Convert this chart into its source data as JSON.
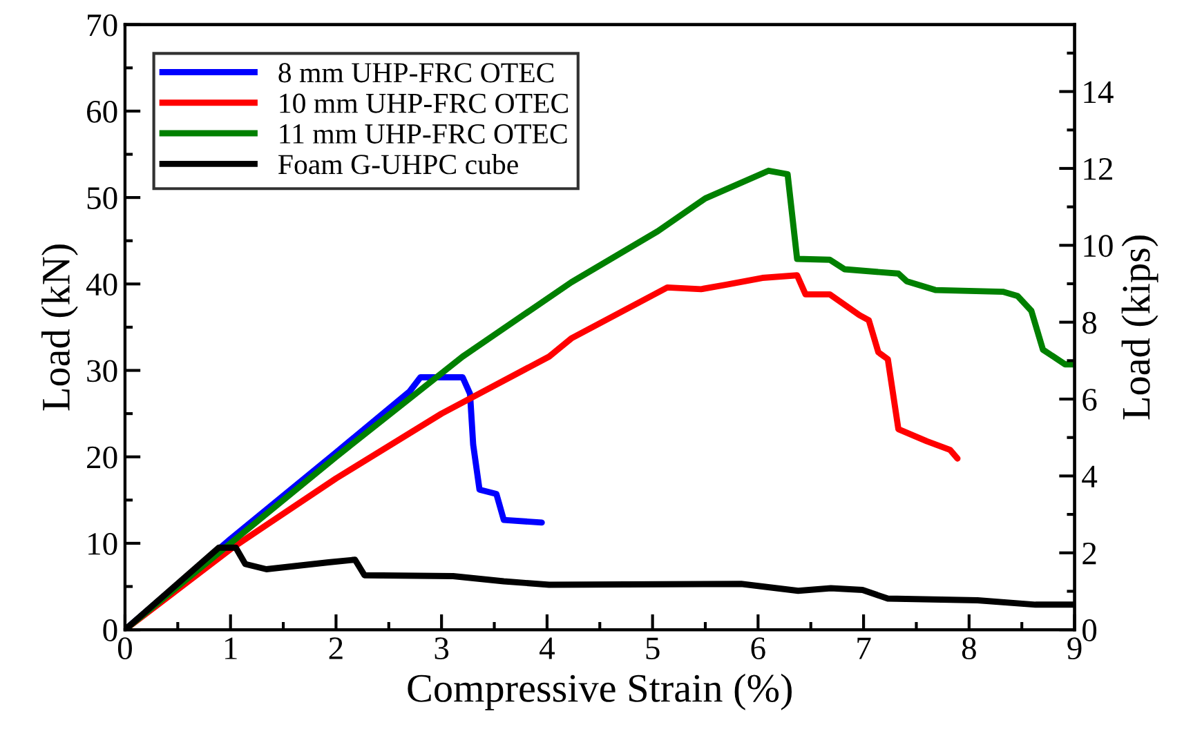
{
  "chart_data": {
    "type": "line",
    "xlabel": "Compressive Strain (%)",
    "ylabel": "Load (kN)",
    "y2label": "Load (kips)",
    "xlim": [
      0,
      9
    ],
    "ylim": [
      0,
      70
    ],
    "y2lim": [
      0,
      15.74
    ],
    "xticks": [
      0,
      {
        "value": 0.5,
        "label": null
      },
      1,
      {
        "value": 1.5,
        "label": null
      },
      2,
      {
        "value": 2.5,
        "label": null
      },
      3,
      {
        "value": 3.5,
        "label": null
      },
      4,
      {
        "value": 4.5,
        "label": null
      },
      5,
      {
        "value": 5.5,
        "label": null
      },
      6,
      {
        "value": 6.5,
        "label": null
      },
      7,
      {
        "value": 7.5,
        "label": null
      },
      8,
      {
        "value": 8.5,
        "label": null
      },
      9
    ],
    "yticks": [
      0,
      {
        "value": 5,
        "label": null
      },
      10,
      {
        "value": 15,
        "label": null
      },
      20,
      {
        "value": 25,
        "label": null
      },
      30,
      {
        "value": 35,
        "label": null
      },
      40,
      {
        "value": 45,
        "label": null
      },
      50,
      {
        "value": 55,
        "label": null
      },
      60,
      {
        "value": 65,
        "label": null
      },
      70
    ],
    "y2ticks": [
      0,
      {
        "value": 1,
        "label": null
      },
      2,
      {
        "value": 3,
        "label": null
      },
      4,
      {
        "value": 5,
        "label": null
      },
      6,
      {
        "value": 7,
        "label": null
      },
      8,
      {
        "value": 9,
        "label": null
      },
      10,
      {
        "value": 11,
        "label": null
      },
      12,
      {
        "value": 13,
        "label": null
      },
      14,
      {
        "value": 15,
        "label": null
      }
    ],
    "grid": false,
    "legend": "top left",
    "marker": "none",
    "line_style": "solid",
    "series": [
      {
        "name": "8 mm UHP-FRC OTEC",
        "color": "#0000ff",
        "x": [
          0,
          1,
          2,
          2.7,
          2.8,
          3.2,
          3.27,
          3.3,
          3.36,
          3.52,
          3.59,
          3.95
        ],
        "values": [
          0,
          10.5,
          20.5,
          27.6,
          29.2,
          29.2,
          27.3,
          21.4,
          16.2,
          15.7,
          12.7,
          12.4
        ]
      },
      {
        "name": "10 mm UHP-FRC OTEC",
        "color": "#ff0000",
        "x": [
          0,
          1.02,
          2,
          3,
          4.02,
          4.23,
          5.14,
          5.46,
          5.69,
          6.04,
          6.37,
          6.45,
          6.68,
          6.96,
          7.05,
          7.14,
          7.23,
          7.33,
          7.6,
          7.82,
          7.89
        ],
        "values": [
          0,
          9.5,
          17.5,
          25,
          31.6,
          33.7,
          39.6,
          39.4,
          39.9,
          40.7,
          41.0,
          38.8,
          38.8,
          36.4,
          35.8,
          32.1,
          31.3,
          23.2,
          21.8,
          20.8,
          19.8
        ]
      },
      {
        "name": "11 mm UHP-FRC OTEC",
        "color": "#008000",
        "x": [
          0,
          1,
          2,
          3.2,
          4.23,
          5.05,
          5.5,
          6.1,
          6.28,
          6.37,
          6.68,
          6.82,
          7.33,
          7.41,
          7.68,
          8.32,
          8.46,
          8.59,
          8.7,
          8.91,
          9.0
        ],
        "values": [
          0,
          10,
          20,
          31.6,
          40.2,
          46.1,
          49.9,
          53.1,
          52.7,
          42.9,
          42.8,
          41.7,
          41.2,
          40.3,
          39.3,
          39.1,
          38.6,
          36.9,
          32.4,
          30.7,
          30.7
        ]
      },
      {
        "name": "Foam G-UHPC cube",
        "color": "#000000",
        "x": [
          0,
          0.89,
          1.05,
          1.14,
          1.34,
          1.93,
          2.18,
          2.27,
          3.11,
          3.59,
          4.02,
          5.84,
          6.38,
          6.69,
          6.99,
          7.23,
          8.08,
          8.63,
          9.0
        ],
        "values": [
          0,
          9.5,
          9.5,
          7.6,
          7.0,
          7.8,
          8.1,
          6.3,
          6.2,
          5.6,
          5.2,
          5.3,
          4.5,
          4.8,
          4.6,
          3.6,
          3.4,
          2.9,
          2.9
        ]
      }
    ]
  }
}
